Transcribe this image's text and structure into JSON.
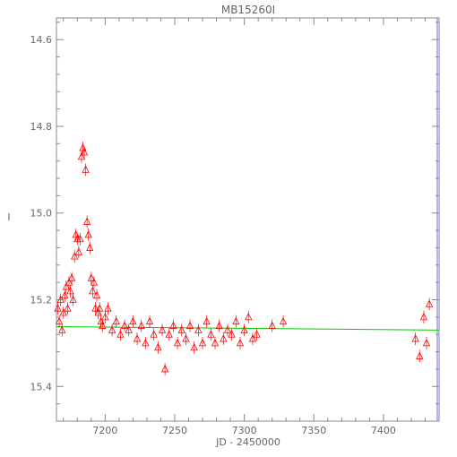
{
  "chart_data": {
    "type": "scatter",
    "title": "MB15260I",
    "xlabel": "JD - 2450000",
    "ylabel": "I",
    "xlim": [
      7165,
      7440
    ],
    "ylim": [
      15.48,
      14.55
    ],
    "y_inverted": true,
    "x_ticks": [
      7200,
      7250,
      7300,
      7350,
      7400
    ],
    "x_tick_labels": [
      "7200",
      "7250",
      "7300",
      "7350",
      "7400"
    ],
    "y_ticks": [
      14.6,
      14.8,
      15.0,
      15.2,
      15.4
    ],
    "y_tick_labels": [
      "14.6",
      "14.8",
      "15.0",
      "15.2",
      "15.4"
    ],
    "grid": false,
    "legend": "none",
    "colors": {
      "points": "#ff0000",
      "model": "#00cc00",
      "right_edge": "#6a6aff",
      "axes": "#888888"
    },
    "series": [
      {
        "marker": "triangle",
        "x": [
          7166,
          7167,
          7168,
          7169,
          7170,
          7171,
          7172,
          7173,
          7174,
          7175,
          7176,
          7177,
          7178,
          7179,
          7180,
          7181,
          7182,
          7183,
          7184,
          7185,
          7186,
          7187,
          7188,
          7189,
          7190,
          7191,
          7192,
          7193,
          7194,
          7195,
          7196,
          7197,
          7198,
          7200,
          7202,
          7205,
          7208,
          7211,
          7214,
          7217,
          7220,
          7223,
          7226,
          7229,
          7232,
          7235,
          7238,
          7241,
          7243,
          7246,
          7249,
          7252,
          7255,
          7258,
          7261,
          7264,
          7267,
          7270,
          7273,
          7276,
          7279,
          7282,
          7285,
          7288,
          7291,
          7294,
          7297,
          7300,
          7303,
          7306,
          7309,
          7320,
          7328,
          7423,
          7426,
          7429,
          7431,
          7433
        ],
        "y": [
          15.22,
          15.25,
          15.2,
          15.27,
          15.23,
          15.19,
          15.17,
          15.22,
          15.16,
          15.18,
          15.15,
          15.2,
          15.1,
          15.05,
          15.06,
          15.09,
          15.06,
          14.87,
          14.85,
          14.86,
          14.9,
          15.02,
          15.05,
          15.08,
          15.15,
          15.18,
          15.16,
          15.22,
          15.19,
          15.23,
          15.22,
          15.25,
          15.26,
          15.24,
          15.22,
          15.27,
          15.25,
          15.28,
          15.26,
          15.27,
          15.25,
          15.29,
          15.26,
          15.3,
          15.25,
          15.28,
          15.31,
          15.27,
          15.36,
          15.28,
          15.26,
          15.3,
          15.27,
          15.29,
          15.26,
          15.31,
          15.27,
          15.3,
          15.25,
          15.28,
          15.3,
          15.26,
          15.29,
          15.27,
          15.28,
          15.25,
          15.3,
          15.27,
          15.24,
          15.29,
          15.28,
          15.26,
          15.25,
          15.29,
          15.33,
          15.24,
          15.3,
          15.21
        ]
      },
      {
        "marker": "line",
        "x": [
          7165,
          7440
        ],
        "y": [
          15.262,
          15.27
        ]
      }
    ]
  }
}
